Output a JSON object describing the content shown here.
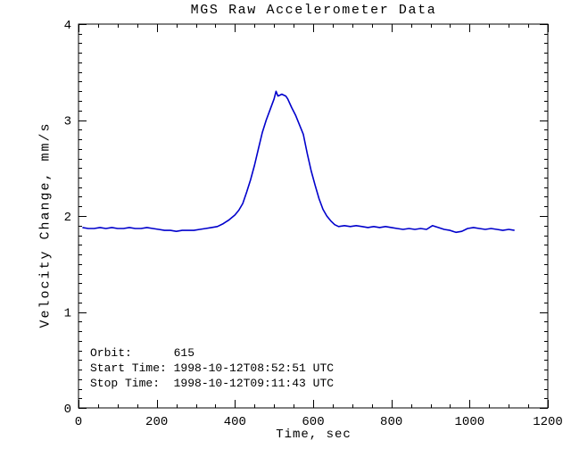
{
  "window": {
    "background": "#ffffff"
  },
  "chart_data": {
    "type": "line",
    "title": "MGS Raw Accelerometer Data",
    "xlabel": "Time, sec",
    "ylabel": "Velocity Change, mm/s",
    "xlim": [
      0,
      1200
    ],
    "ylim": [
      0,
      4
    ],
    "x_major_ticks": [
      0,
      200,
      400,
      600,
      800,
      1000,
      1200
    ],
    "x_minor_step": 50,
    "y_major_ticks": [
      0,
      1,
      2,
      3,
      4
    ],
    "y_minor_step": 0.1,
    "grid": false,
    "legend": "none",
    "line_color": "#0000cc",
    "axis_color": "#000000",
    "series": [
      {
        "name": "velocity-change",
        "x": [
          10,
          25,
          40,
          55,
          70,
          85,
          100,
          115,
          130,
          145,
          160,
          175,
          190,
          205,
          220,
          235,
          250,
          265,
          280,
          295,
          310,
          325,
          340,
          355,
          370,
          385,
          400,
          410,
          420,
          430,
          440,
          450,
          460,
          470,
          480,
          490,
          500,
          505,
          510,
          515,
          520,
          525,
          530,
          535,
          545,
          555,
          565,
          575,
          585,
          595,
          605,
          615,
          625,
          635,
          645,
          655,
          665,
          680,
          695,
          710,
          725,
          740,
          755,
          770,
          785,
          800,
          815,
          830,
          845,
          860,
          875,
          890,
          905,
          920,
          935,
          950,
          965,
          980,
          995,
          1010,
          1025,
          1040,
          1055,
          1070,
          1085,
          1100,
          1115
        ],
        "y": [
          1.88,
          1.87,
          1.87,
          1.88,
          1.87,
          1.88,
          1.87,
          1.87,
          1.88,
          1.87,
          1.87,
          1.88,
          1.87,
          1.86,
          1.85,
          1.85,
          1.84,
          1.85,
          1.85,
          1.85,
          1.86,
          1.87,
          1.88,
          1.89,
          1.92,
          1.96,
          2.01,
          2.06,
          2.13,
          2.25,
          2.38,
          2.53,
          2.7,
          2.87,
          3.0,
          3.11,
          3.22,
          3.3,
          3.25,
          3.26,
          3.27,
          3.26,
          3.25,
          3.22,
          3.13,
          3.05,
          2.95,
          2.85,
          2.65,
          2.47,
          2.32,
          2.18,
          2.07,
          2.0,
          1.95,
          1.91,
          1.89,
          1.9,
          1.89,
          1.9,
          1.89,
          1.88,
          1.89,
          1.88,
          1.89,
          1.88,
          1.87,
          1.86,
          1.87,
          1.86,
          1.87,
          1.86,
          1.9,
          1.88,
          1.86,
          1.85,
          1.83,
          1.84,
          1.87,
          1.88,
          1.87,
          1.86,
          1.87,
          1.86,
          1.85,
          1.86,
          1.85
        ]
      }
    ],
    "annotations": [
      {
        "label": "Orbit:      615"
      },
      {
        "label": "Start Time: 1998-10-12T08:52:51 UTC"
      },
      {
        "label": "Stop Time:  1998-10-12T09:11:43 UTC"
      }
    ]
  }
}
